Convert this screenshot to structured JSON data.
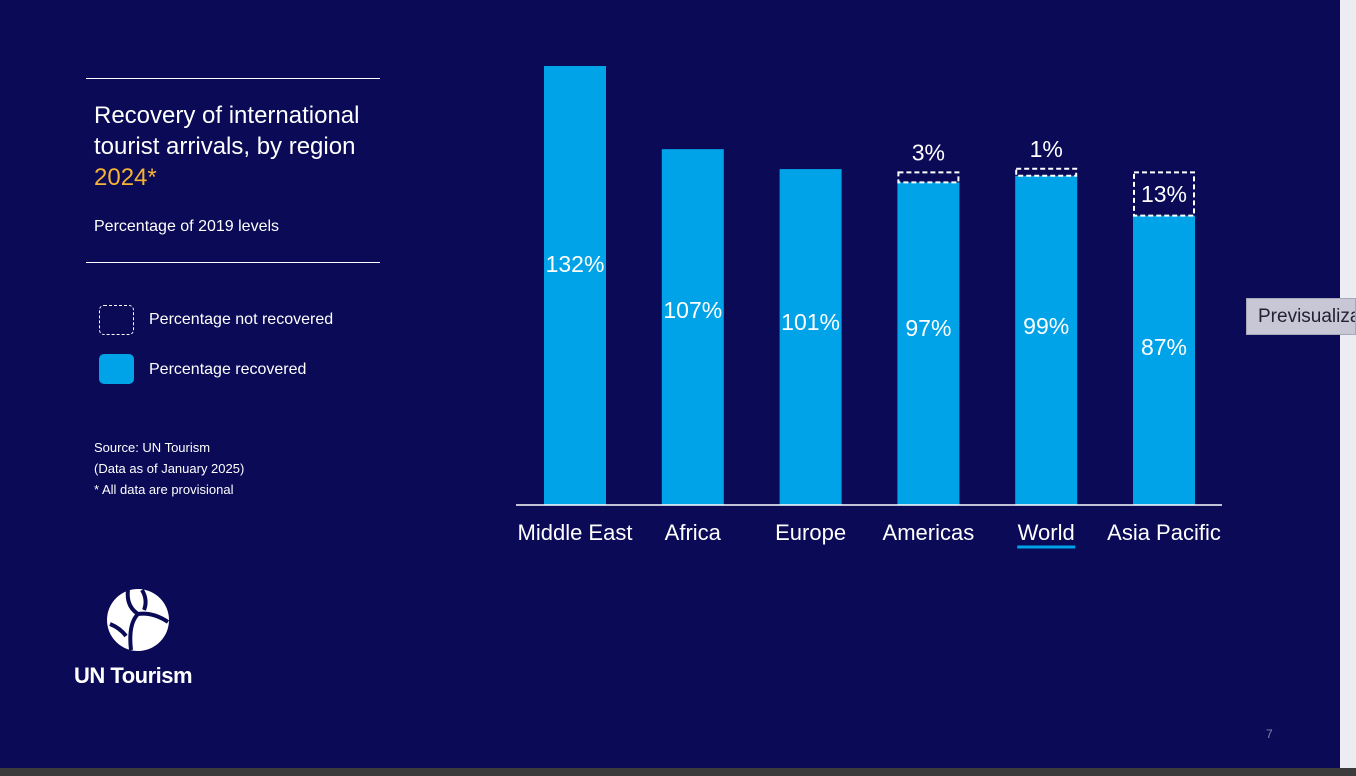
{
  "title": {
    "line1": "Recovery of international",
    "line2": "tourist arrivals, by region",
    "year": "2024*"
  },
  "subtitle": "Percentage of 2019 levels",
  "legend": [
    {
      "label": "Percentage not recovered"
    },
    {
      "label": "Percentage recovered"
    }
  ],
  "source": {
    "line1": "Source: UN Tourism",
    "line2": "(Data as of January 2025)",
    "line3": "* All data are provisional"
  },
  "logo_text": "UN Tourism",
  "page_number": "7",
  "preview_tab": "Previsualizar",
  "colors": {
    "background": "#0a0a57",
    "recovered": "#00a3e8",
    "accent_year": "#f5b335",
    "highlight_underline": "#00a3e8"
  },
  "chart_data": {
    "type": "bar",
    "title": "Recovery of international tourist arrivals, by region 2024*",
    "ylabel": "Percentage of 2019 levels",
    "xlabel": "",
    "ylim": [
      0,
      132
    ],
    "categories": [
      "Middle East",
      "Africa",
      "Europe",
      "Americas",
      "World",
      "Asia Pacific"
    ],
    "highlighted_category": "World",
    "series": [
      {
        "name": "Percentage recovered",
        "values": [
          132,
          107,
          101,
          97,
          99,
          87
        ],
        "labels": [
          "132%",
          "107%",
          "101%",
          "97%",
          "99%",
          "87%"
        ]
      },
      {
        "name": "Percentage not recovered",
        "values": [
          0,
          0,
          0,
          3,
          1,
          13
        ],
        "labels": [
          "",
          "",
          "",
          "3%",
          "1%",
          "13%"
        ]
      }
    ]
  }
}
